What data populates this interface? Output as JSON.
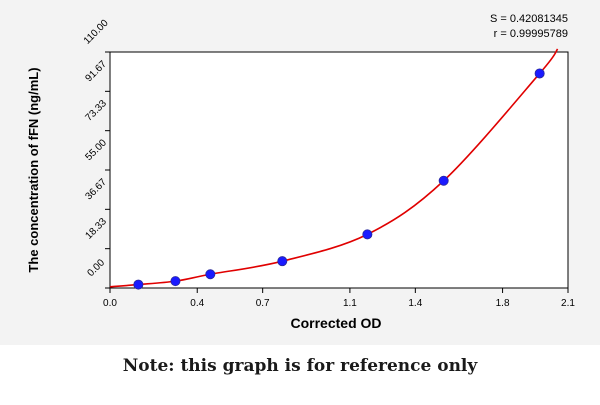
{
  "note": "Note: this graph is for reference only",
  "chart_data": {
    "type": "scatter",
    "xlabel": "Corrected OD",
    "ylabel": "The concentration of fFN (ng/mL)",
    "xlim": [
      0.0,
      2.1
    ],
    "ylim": [
      0.0,
      110.0
    ],
    "x_ticks": [
      0.0,
      0.4,
      0.7,
      1.1,
      1.4,
      1.8,
      2.1
    ],
    "x_tick_labels": [
      "0.0",
      "0.4",
      "0.7",
      "1.1",
      "1.4",
      "1.8",
      "2.1"
    ],
    "y_ticks": [
      0.0,
      18.33,
      36.67,
      55.0,
      73.33,
      91.67,
      110.0
    ],
    "y_tick_labels": [
      "0.00",
      "18.33",
      "36.67",
      "55.00",
      "73.33",
      "91.67",
      "110.00"
    ],
    "stats": [
      "S = 0.42081345",
      "r = 0.99995789"
    ],
    "grid": false,
    "colors": {
      "points": "#1a1aff",
      "curve": "#e00000",
      "axis": "#000000"
    },
    "series": [
      {
        "points": [
          {
            "x": 0.13,
            "y": 1.6
          },
          {
            "x": 0.3,
            "y": 3.2
          },
          {
            "x": 0.46,
            "y": 6.4
          },
          {
            "x": 0.79,
            "y": 12.5
          },
          {
            "x": 1.18,
            "y": 25.0
          },
          {
            "x": 1.53,
            "y": 50.0
          },
          {
            "x": 1.97,
            "y": 100.0
          }
        ]
      }
    ]
  }
}
